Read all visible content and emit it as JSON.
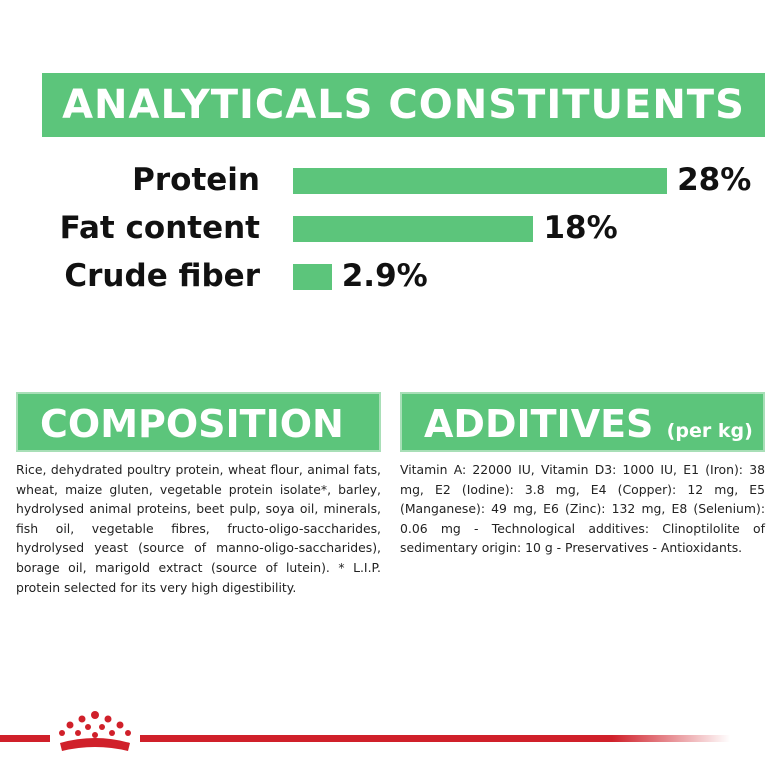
{
  "analytics": {
    "title": "ANALYTICALS CONSTITUENTS",
    "rows": [
      {
        "label": "Protein",
        "value": 28,
        "value_label": "28%"
      },
      {
        "label": "Fat content",
        "value": 18,
        "value_label": "18%"
      },
      {
        "label": "Crude fiber",
        "value": 2.9,
        "value_label": "2.9%"
      }
    ]
  },
  "composition": {
    "title": "COMPOSITION",
    "text": "Rice, dehydrated poultry protein, wheat flour, animal fats, wheat, maize gluten, vegetable protein isolate*, barley, hydrolysed animal proteins, beet pulp, soya oil, minerals, fish oil, vegetable fibres, fructo-oligo-saccharides, hydrolysed yeast (source of manno-oligo-saccharides), borage oil, marigold extract (source of lutein). * L.I.P. protein selected for its very high digestibility."
  },
  "additives": {
    "title": "ADDITIVES",
    "unit": "(per kg)",
    "text": "Vitamin A: 22000 IU, Vitamin D3: 1000 IU, E1 (Iron): 38 mg, E2 (Iodine): 3.8 mg, E4 (Copper): 12 mg, E5 (Manganese): 49 mg, E6 (Zinc): 132 mg, E8 (Selenium): 0.06 mg - Technological additives: Clinoptilolite of sedimentary origin: 10 g - Preservatives - Antioxidants."
  }
}
